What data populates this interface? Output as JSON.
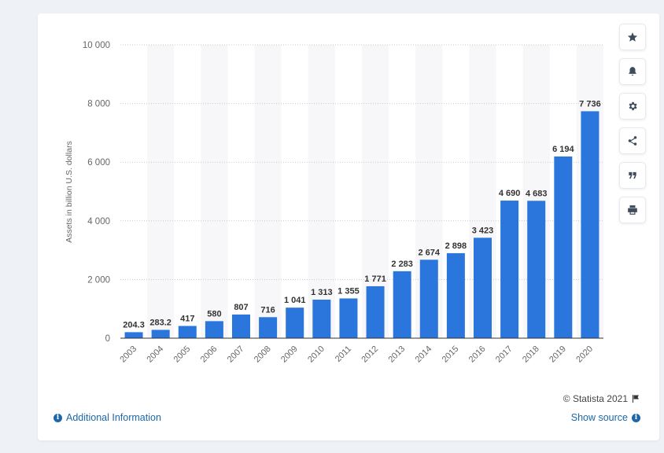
{
  "chart_data": {
    "type": "bar",
    "categories": [
      "2003",
      "2004",
      "2005",
      "2006",
      "2007",
      "2008",
      "2009",
      "2010",
      "2011",
      "2012",
      "2013",
      "2014",
      "2015",
      "2016",
      "2017",
      "2018",
      "2019",
      "2020"
    ],
    "values": [
      204.3,
      283.2,
      417,
      580,
      807,
      716,
      1041,
      1313,
      1355,
      1771,
      2283,
      2674,
      2898,
      3423,
      4690,
      4683,
      6194,
      7736
    ],
    "value_labels": [
      "204.3",
      "283.2",
      "417",
      "580",
      "807",
      "716",
      "1 041",
      "1 313",
      "1 355",
      "1 771",
      "2 283",
      "2 674",
      "2 898",
      "3 423",
      "4 690",
      "4 683",
      "6 194",
      "7 736"
    ],
    "ylabel": "Assets in billion U.S. dollars",
    "ylim": [
      0,
      10000
    ],
    "yticks": [
      0,
      2000,
      4000,
      6000,
      8000,
      10000
    ],
    "ytick_labels": [
      "0",
      "2 000",
      "4 000",
      "6 000",
      "8 000",
      "10 000"
    ],
    "bar_color": "#2a76dd",
    "grid": true
  },
  "toolbar": {
    "items": [
      "star-icon",
      "bell-icon",
      "gear-icon",
      "share-icon",
      "quote-icon",
      "print-icon"
    ]
  },
  "footer": {
    "credit": "© Statista 2021",
    "additional_info": "Additional Information",
    "show_source": "Show source"
  }
}
